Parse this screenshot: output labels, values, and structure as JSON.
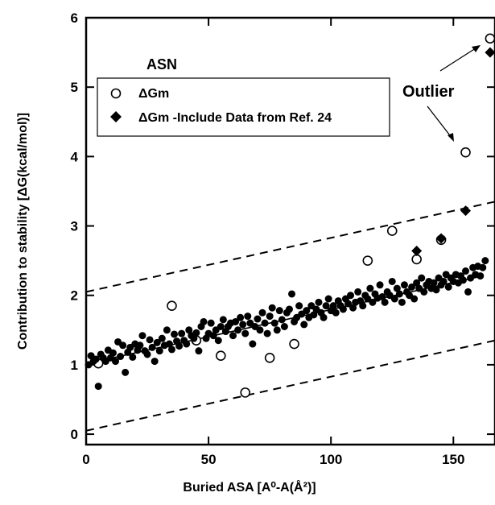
{
  "chart_data": {
    "type": "scatter",
    "xlabel": "Buried ASA [A⁰-A(Å²)]",
    "ylabel": "Contribution to stability [ΔG(kcal/mol)]",
    "xlim": [
      0,
      167
    ],
    "ylim": [
      -0.15,
      6
    ],
    "x_ticks": [
      0,
      50,
      100,
      150
    ],
    "y_ticks": [
      0,
      1,
      2,
      3,
      4,
      5,
      6
    ],
    "legend": {
      "title": "ASN",
      "placement": "upper-left",
      "entries": [
        {
          "series": "open",
          "label": "ΔGm"
        },
        {
          "series": "filled",
          "label": "ΔGm -Include Data from Ref. 24"
        }
      ]
    },
    "annotation": {
      "text": "Outlier",
      "points_to": [
        [
          165,
          5.7
        ],
        [
          155,
          4.06
        ]
      ]
    },
    "series": [
      {
        "marker": "open-circle",
        "points": [
          [
            5,
            1.02
          ],
          [
            35,
            1.85
          ],
          [
            45,
            1.35
          ],
          [
            55,
            1.13
          ],
          [
            65,
            0.6
          ],
          [
            75,
            1.1
          ],
          [
            85,
            1.3
          ],
          [
            115,
            2.5
          ],
          [
            125,
            2.93
          ],
          [
            135,
            2.52
          ],
          [
            145,
            2.8
          ],
          [
            155,
            4.06
          ],
          [
            165,
            5.7
          ]
        ]
      },
      {
        "marker": "filled-diamond",
        "points": [
          [
            135,
            2.64
          ],
          [
            145,
            2.82
          ],
          [
            155,
            3.22
          ],
          [
            165,
            5.5
          ]
        ]
      },
      {
        "marker": "filled-circle",
        "points": [
          [
            1,
            1.0
          ],
          [
            2,
            1.13
          ],
          [
            3,
            1.05
          ],
          [
            4,
            1.08
          ],
          [
            5,
            0.69
          ],
          [
            6,
            1.15
          ],
          [
            7,
            1.1
          ],
          [
            8,
            1.05
          ],
          [
            9,
            1.21
          ],
          [
            10,
            1.1
          ],
          [
            11,
            1.17
          ],
          [
            12,
            1.05
          ],
          [
            13,
            1.33
          ],
          [
            14,
            1.12
          ],
          [
            15,
            1.28
          ],
          [
            16,
            0.89
          ],
          [
            17,
            1.18
          ],
          [
            18,
            1.25
          ],
          [
            19,
            1.11
          ],
          [
            20,
            1.3
          ],
          [
            21,
            1.21
          ],
          [
            22,
            1.28
          ],
          [
            23,
            1.42
          ],
          [
            24,
            1.2
          ],
          [
            25,
            1.15
          ],
          [
            26,
            1.36
          ],
          [
            27,
            1.25
          ],
          [
            28,
            1.05
          ],
          [
            29,
            1.32
          ],
          [
            30,
            1.2
          ],
          [
            31,
            1.38
          ],
          [
            32,
            1.28
          ],
          [
            33,
            1.5
          ],
          [
            34,
            1.3
          ],
          [
            35,
            1.22
          ],
          [
            36,
            1.44
          ],
          [
            37,
            1.34
          ],
          [
            38,
            1.27
          ],
          [
            39,
            1.45
          ],
          [
            40,
            1.35
          ],
          [
            41,
            1.3
          ],
          [
            42,
            1.5
          ],
          [
            43,
            1.42
          ],
          [
            44,
            1.38
          ],
          [
            45,
            1.46
          ],
          [
            46,
            1.2
          ],
          [
            47,
            1.55
          ],
          [
            48,
            1.62
          ],
          [
            49,
            1.38
          ],
          [
            50,
            1.45
          ],
          [
            51,
            1.6
          ],
          [
            52,
            1.42
          ],
          [
            53,
            1.5
          ],
          [
            54,
            1.35
          ],
          [
            55,
            1.55
          ],
          [
            56,
            1.65
          ],
          [
            57,
            1.48
          ],
          [
            58,
            1.55
          ],
          [
            59,
            1.6
          ],
          [
            60,
            1.42
          ],
          [
            61,
            1.62
          ],
          [
            62,
            1.5
          ],
          [
            63,
            1.68
          ],
          [
            64,
            1.58
          ],
          [
            65,
            1.45
          ],
          [
            66,
            1.7
          ],
          [
            67,
            1.6
          ],
          [
            68,
            1.3
          ],
          [
            69,
            1.55
          ],
          [
            70,
            1.66
          ],
          [
            71,
            1.5
          ],
          [
            72,
            1.75
          ],
          [
            73,
            1.6
          ],
          [
            74,
            1.45
          ],
          [
            75,
            1.7
          ],
          [
            76,
            1.82
          ],
          [
            77,
            1.6
          ],
          [
            78,
            1.5
          ],
          [
            79,
            1.78
          ],
          [
            80,
            1.65
          ],
          [
            81,
            1.55
          ],
          [
            82,
            1.75
          ],
          [
            83,
            1.8
          ],
          [
            84,
            2.02
          ],
          [
            85,
            1.62
          ],
          [
            86,
            1.68
          ],
          [
            87,
            1.85
          ],
          [
            88,
            1.73
          ],
          [
            89,
            1.58
          ],
          [
            90,
            1.78
          ],
          [
            91,
            1.68
          ],
          [
            92,
            1.85
          ],
          [
            93,
            1.72
          ],
          [
            94,
            1.8
          ],
          [
            95,
            1.9
          ],
          [
            96,
            1.75
          ],
          [
            97,
            1.68
          ],
          [
            98,
            1.85
          ],
          [
            99,
            1.95
          ],
          [
            100,
            1.78
          ],
          [
            101,
            1.85
          ],
          [
            102,
            1.75
          ],
          [
            103,
            1.92
          ],
          [
            104,
            1.85
          ],
          [
            105,
            1.8
          ],
          [
            106,
            1.95
          ],
          [
            107,
            1.88
          ],
          [
            108,
            2.0
          ],
          [
            109,
            1.82
          ],
          [
            110,
            1.9
          ],
          [
            111,
            2.05
          ],
          [
            112,
            1.92
          ],
          [
            113,
            1.85
          ],
          [
            114,
            2.0
          ],
          [
            115,
            1.95
          ],
          [
            116,
            2.1
          ],
          [
            117,
            1.9
          ],
          [
            118,
            2.02
          ],
          [
            119,
            1.96
          ],
          [
            120,
            2.15
          ],
          [
            121,
            1.98
          ],
          [
            122,
            1.9
          ],
          [
            123,
            2.05
          ],
          [
            124,
            2.0
          ],
          [
            125,
            2.2
          ],
          [
            126,
            1.95
          ],
          [
            127,
            2.1
          ],
          [
            128,
            2.02
          ],
          [
            129,
            1.9
          ],
          [
            130,
            2.15
          ],
          [
            131,
            2.05
          ],
          [
            132,
            2.0
          ],
          [
            133,
            2.12
          ],
          [
            134,
            1.95
          ],
          [
            135,
            2.18
          ],
          [
            136,
            2.1
          ],
          [
            137,
            2.25
          ],
          [
            138,
            2.05
          ],
          [
            139,
            2.15
          ],
          [
            140,
            2.2
          ],
          [
            141,
            2.1
          ],
          [
            142,
            2.18
          ],
          [
            143,
            2.08
          ],
          [
            144,
            2.25
          ],
          [
            145,
            2.15
          ],
          [
            146,
            2.2
          ],
          [
            147,
            2.3
          ],
          [
            148,
            2.12
          ],
          [
            149,
            2.25
          ],
          [
            150,
            2.2
          ],
          [
            151,
            2.3
          ],
          [
            152,
            2.18
          ],
          [
            153,
            2.28
          ],
          [
            154,
            2.22
          ],
          [
            155,
            2.35
          ],
          [
            156,
            2.05
          ],
          [
            157,
            2.25
          ],
          [
            158,
            2.4
          ],
          [
            159,
            2.3
          ],
          [
            160,
            2.42
          ],
          [
            161,
            2.28
          ],
          [
            162,
            2.4
          ],
          [
            163,
            2.5
          ]
        ]
      }
    ],
    "fit_line": {
      "style": "solid",
      "x": [
        2,
        162
      ],
      "y": [
        1.03,
        2.28
      ]
    },
    "bound_lines": [
      {
        "style": "dashed",
        "x": [
          0,
          167
        ],
        "y": [
          2.05,
          3.35
        ]
      },
      {
        "style": "dashed",
        "x": [
          0,
          167
        ],
        "y": [
          0.05,
          1.35
        ]
      }
    ]
  }
}
